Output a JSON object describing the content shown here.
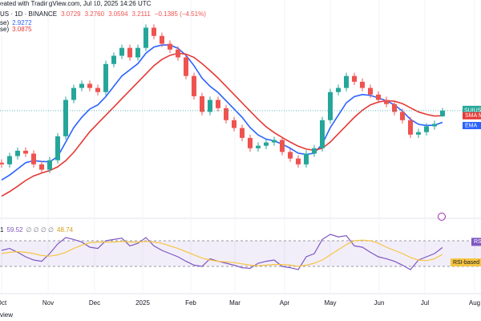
{
  "chart_data": {
    "type": "candlestick",
    "credit": "eated with TradingView.com, Jul 10, 2025 14:26 UTC",
    "symbol": "US · 1D · BINANCE",
    "ohlc_labels": [
      "3.0729",
      "3.2760",
      "3.0594",
      "3.2111"
    ],
    "change": "−0.1385 (−4.51%)",
    "up_color": "#26a69a",
    "down_color": "#ef5350",
    "xlim": [
      -0.2,
      59.8
    ],
    "xticks": [
      {
        "value": 0,
        "label": "Oct"
      },
      {
        "value": 5.8,
        "label": "Nov"
      },
      {
        "value": 11.6,
        "label": "Dec"
      },
      {
        "value": 17.6,
        "label": "2025"
      },
      {
        "value": 23.6,
        "label": "Feb"
      },
      {
        "value": 29.1,
        "label": "Mar"
      },
      {
        "value": 35.3,
        "label": "Apr"
      },
      {
        "value": 41,
        "label": "May"
      },
      {
        "value": 47.1,
        "label": "Jun"
      },
      {
        "value": 52.8,
        "label": "Jul"
      },
      {
        "value": 59,
        "label": "Aug"
      }
    ],
    "ylim": [
      0.74,
      5.89
    ],
    "open": [
      1.95,
      1.91,
      2.11,
      2.24,
      2.17,
      1.91,
      1.78,
      2.01,
      2.59,
      3.47,
      3.76,
      3.86,
      3.76,
      3.66,
      4.34,
      4.54,
      4.73,
      4.5,
      4.73,
      5.22,
      5.02,
      4.83,
      4.69,
      4.5,
      4.05,
      3.56,
      3.18,
      3.47,
      3.27,
      2.98,
      2.79,
      2.55,
      2.3,
      2.36,
      2.44,
      2.5,
      2.21,
      2.05,
      1.91,
      2.17,
      2.3,
      2.98,
      3.66,
      3.76,
      4.05,
      3.91,
      3.76,
      3.6,
      3.47,
      3.37,
      3.18,
      2.98,
      2.63,
      2.69,
      2.83,
      3.0729
    ],
    "high": [
      2.03,
      2.19,
      2.32,
      2.32,
      2.25,
      1.99,
      2.09,
      2.67,
      3.55,
      3.84,
      3.94,
      3.94,
      3.84,
      4.42,
      4.62,
      4.81,
      4.81,
      4.81,
      5.3,
      5.3,
      5.1,
      4.91,
      4.77,
      4.58,
      4.13,
      3.64,
      3.55,
      3.55,
      3.35,
      3.06,
      2.87,
      2.63,
      2.44,
      2.52,
      2.58,
      2.58,
      2.29,
      2.13,
      2.25,
      2.38,
      3.06,
      3.74,
      3.84,
      4.13,
      4.13,
      3.99,
      3.84,
      3.68,
      3.55,
      3.45,
      3.26,
      3.06,
      2.77,
      2.91,
      2.97,
      3.276
    ],
    "low": [
      1.83,
      1.83,
      2.03,
      2.09,
      1.83,
      1.7,
      1.7,
      1.93,
      2.51,
      3.39,
      3.68,
      3.68,
      3.58,
      3.58,
      4.26,
      4.46,
      4.42,
      4.42,
      4.65,
      4.94,
      4.75,
      4.61,
      4.42,
      3.97,
      3.48,
      3.1,
      3.1,
      3.19,
      2.9,
      2.71,
      2.47,
      2.22,
      2.22,
      2.28,
      2.36,
      2.13,
      1.97,
      1.83,
      1.83,
      2.09,
      2.22,
      2.9,
      3.58,
      3.68,
      3.83,
      3.68,
      3.52,
      3.39,
      3.29,
      3.1,
      2.9,
      2.55,
      2.55,
      2.61,
      2.75,
      3.0594
    ],
    "close": [
      1.91,
      2.11,
      2.24,
      2.17,
      1.91,
      1.78,
      2.01,
      2.59,
      3.47,
      3.76,
      3.86,
      3.76,
      3.66,
      4.34,
      4.54,
      4.73,
      4.5,
      4.73,
      5.22,
      5.02,
      4.83,
      4.69,
      4.5,
      4.05,
      3.56,
      3.18,
      3.47,
      3.27,
      2.98,
      2.79,
      2.55,
      2.3,
      2.36,
      2.44,
      2.5,
      2.21,
      2.05,
      1.91,
      2.17,
      2.3,
      2.98,
      3.66,
      3.76,
      4.05,
      3.91,
      3.76,
      3.6,
      3.47,
      3.37,
      3.18,
      2.98,
      2.63,
      2.69,
      2.83,
      2.89,
      3.2111
    ],
    "series": [
      {
        "name": "EMA",
        "legend_prefix": "se)",
        "color": "#2962ff",
        "values": [
          1.53,
          1.65,
          1.8,
          1.95,
          2.0,
          1.98,
          1.97,
          2.1,
          2.45,
          2.8,
          3.05,
          3.25,
          3.35,
          3.55,
          3.8,
          4.05,
          4.2,
          4.35,
          4.6,
          4.75,
          4.8,
          4.8,
          4.72,
          4.55,
          4.3,
          4.0,
          3.8,
          3.65,
          3.45,
          3.25,
          3.05,
          2.8,
          2.62,
          2.52,
          2.48,
          2.4,
          2.3,
          2.18,
          2.15,
          2.18,
          2.4,
          2.8,
          3.1,
          3.4,
          3.55,
          3.6,
          3.58,
          3.52,
          3.45,
          3.35,
          3.2,
          3.0,
          2.88,
          2.85,
          2.86,
          2.9272
        ]
      },
      {
        "name": "SMA:M",
        "legend_prefix": "se)",
        "color": "#e53935",
        "values": [
          1.14,
          1.25,
          1.38,
          1.52,
          1.63,
          1.7,
          1.76,
          1.85,
          2.0,
          2.2,
          2.45,
          2.7,
          2.9,
          3.1,
          3.3,
          3.5,
          3.7,
          3.9,
          4.1,
          4.3,
          4.45,
          4.55,
          4.6,
          4.58,
          4.5,
          4.35,
          4.18,
          4.0,
          3.8,
          3.6,
          3.4,
          3.2,
          3.0,
          2.82,
          2.68,
          2.56,
          2.45,
          2.35,
          2.28,
          2.25,
          2.3,
          2.45,
          2.65,
          2.85,
          3.05,
          3.22,
          3.35,
          3.42,
          3.45,
          3.44,
          3.38,
          3.28,
          3.18,
          3.12,
          3.08,
          3.0875
        ]
      }
    ],
    "price_tag": "SUIUSDT",
    "rsi": {
      "ylim": [
        0,
        100
      ],
      "bands": [
        70,
        30
      ],
      "legend_prefix": "1",
      "legend_mid": "∅ ∅ ∅ ∅",
      "series": [
        {
          "name": "RSI",
          "color": "#7e57c2",
          "values": [
            55,
            58,
            52,
            45,
            40,
            38,
            50,
            65,
            75,
            72,
            68,
            60,
            58,
            70,
            72,
            74,
            62,
            66,
            75,
            62,
            55,
            50,
            45,
            38,
            32,
            30,
            42,
            38,
            35,
            32,
            28,
            27,
            35,
            38,
            40,
            30,
            28,
            25,
            45,
            50,
            72,
            80,
            76,
            78,
            62,
            60,
            52,
            45,
            42,
            38,
            32,
            25,
            40,
            45,
            50,
            59.52
          ]
        },
        {
          "name": "RSI-based MA",
          "color": "#f5c542",
          "values": [
            50,
            52,
            53,
            52,
            50,
            47,
            46,
            48,
            52,
            58,
            63,
            67,
            68,
            68,
            68,
            69,
            68,
            68,
            69,
            68,
            66,
            62,
            58,
            53,
            48,
            43,
            40,
            38,
            37,
            36,
            34,
            32,
            31,
            32,
            33,
            33,
            32,
            30,
            32,
            35,
            40,
            48,
            56,
            64,
            70,
            71,
            70,
            66,
            60,
            55,
            50,
            44,
            40,
            39,
            42,
            48.74
          ]
        }
      ]
    },
    "footer": "view"
  }
}
